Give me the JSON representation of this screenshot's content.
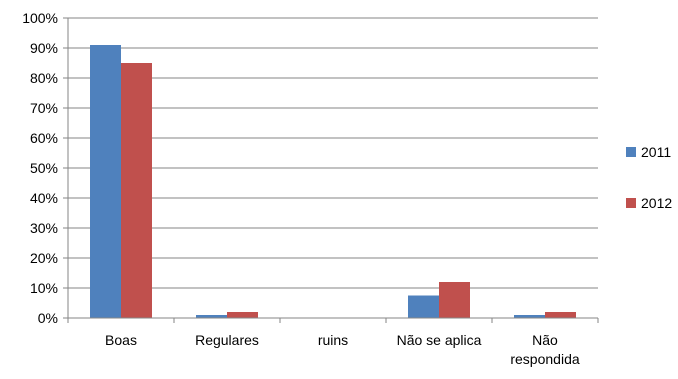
{
  "chart_data": {
    "type": "bar",
    "title": "",
    "xlabel": "",
    "ylabel": "",
    "categories": [
      [
        "Boas"
      ],
      [
        "Regulares"
      ],
      [
        "ruins"
      ],
      [
        "Não se aplica"
      ],
      [
        "Não",
        "respondida"
      ]
    ],
    "series": [
      {
        "name": "2011",
        "color": "#4F81BD",
        "values": [
          91,
          1,
          0,
          7.5,
          1
        ]
      },
      {
        "name": "2012",
        "color": "#C0504D",
        "values": [
          85,
          2,
          0,
          12,
          2
        ]
      }
    ],
    "ylim": [
      0,
      100
    ],
    "yticks": [
      0,
      10,
      20,
      30,
      40,
      50,
      60,
      70,
      80,
      90,
      100
    ],
    "ytick_labels": [
      "0%",
      "10%",
      "20%",
      "30%",
      "40%",
      "50%",
      "60%",
      "70%",
      "80%",
      "90%",
      "100%"
    ],
    "grid": true,
    "legend_position": "right"
  }
}
